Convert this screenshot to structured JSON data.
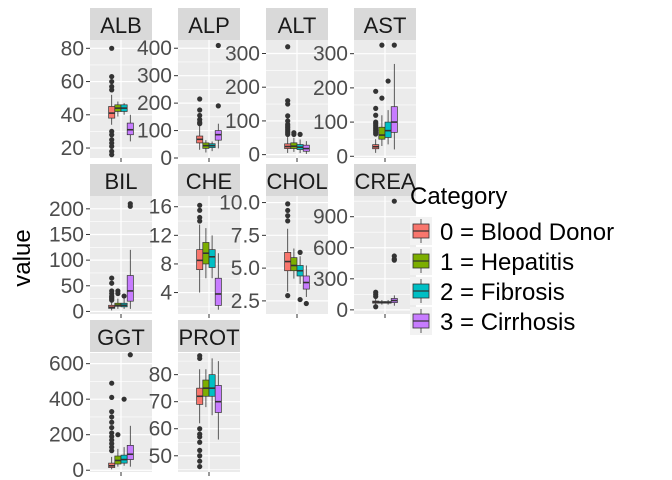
{
  "y_axis_title": "value",
  "legend": {
    "title": "Category",
    "entries": [
      {
        "label": "0 = Blood Donor",
        "color": "#F8766D"
      },
      {
        "label": "1 = Hepatitis",
        "color": "#7CAE00"
      },
      {
        "label": "2 = Fibrosis",
        "color": "#00BFC4"
      },
      {
        "label": "3 = Cirrhosis",
        "color": "#C77CFF"
      }
    ]
  },
  "chart_data": {
    "type": "boxplot",
    "facet_layout": "wrap",
    "scales": "free_y",
    "legend_position": "right",
    "grid": true,
    "groups": [
      "0 = Blood Donor",
      "1 = Hepatitis",
      "2 = Fibrosis",
      "3 = Cirrhosis"
    ],
    "panels": [
      {
        "strip": "ALB",
        "ylim": [
          14,
          85
        ],
        "yticks": [
          20,
          40,
          60,
          80
        ],
        "boxes": [
          {
            "group": "0 = Blood Donor",
            "lower": 34,
            "q1": 38,
            "median": 41,
            "q3": 45,
            "upper": 52,
            "outliers": [
              80,
              63,
              60,
              57,
              55,
              30,
              28,
              25,
              23,
              21,
              18,
              16
            ]
          },
          {
            "group": "1 = Hepatitis",
            "lower": 39,
            "q1": 42,
            "median": 44,
            "q3": 46,
            "upper": 48,
            "outliers": []
          },
          {
            "group": "2 = Fibrosis",
            "lower": 40,
            "q1": 42,
            "median": 44,
            "q3": 46,
            "upper": 47,
            "outliers": []
          },
          {
            "group": "3 = Cirrhosis",
            "lower": 24,
            "q1": 28,
            "median": 31,
            "q3": 35,
            "upper": 40,
            "outliers": []
          }
        ]
      },
      {
        "strip": "ALP",
        "ylim": [
          0,
          430
        ],
        "yticks": [
          0,
          100,
          200,
          300,
          400
        ],
        "boxes": [
          {
            "group": "0 = Blood Donor",
            "lower": 30,
            "q1": 55,
            "median": 68,
            "q3": 80,
            "upper": 120,
            "outliers": [
              215,
              175,
              155,
              140,
              130,
              125
            ]
          },
          {
            "group": "1 = Hepatitis",
            "lower": 20,
            "q1": 35,
            "median": 45,
            "q3": 55,
            "upper": 65,
            "outliers": []
          },
          {
            "group": "2 = Fibrosis",
            "lower": 25,
            "q1": 38,
            "median": 45,
            "q3": 52,
            "upper": 60,
            "outliers": []
          },
          {
            "group": "3 = Cirrhosis",
            "lower": 35,
            "q1": 65,
            "median": 85,
            "q3": 100,
            "upper": 125,
            "outliers": [
              410,
              190
            ]
          }
        ]
      },
      {
        "strip": "ALT",
        "ylim": [
          -10,
          340
        ],
        "yticks": [
          0,
          100,
          200,
          300
        ],
        "boxes": [
          {
            "group": "0 = Blood Donor",
            "lower": 5,
            "q1": 18,
            "median": 24,
            "q3": 32,
            "upper": 52,
            "outliers": [
              320,
              160,
              150,
              115,
              100,
              90,
              85,
              80,
              75,
              70,
              65,
              60
            ]
          },
          {
            "group": "1 = Hepatitis",
            "lower": 8,
            "q1": 18,
            "median": 25,
            "q3": 35,
            "upper": 50,
            "outliers": [
              65,
              60
            ]
          },
          {
            "group": "2 = Fibrosis",
            "lower": 5,
            "q1": 15,
            "median": 22,
            "q3": 30,
            "upper": 45,
            "outliers": [
              60
            ]
          },
          {
            "group": "3 = Cirrhosis",
            "lower": 2,
            "q1": 10,
            "median": 18,
            "q3": 28,
            "upper": 40,
            "outliers": []
          }
        ]
      },
      {
        "strip": "AST",
        "ylim": [
          -5,
          340
        ],
        "yticks": [
          0,
          100,
          200,
          300
        ],
        "boxes": [
          {
            "group": "0 = Blood Donor",
            "lower": 10,
            "q1": 22,
            "median": 28,
            "q3": 34,
            "upper": 50,
            "outliers": [
              190,
              140,
              120,
              100,
              95,
              90,
              85,
              80,
              75,
              70,
              65
            ]
          },
          {
            "group": "1 = Hepatitis",
            "lower": 30,
            "q1": 50,
            "median": 62,
            "q3": 85,
            "upper": 120,
            "outliers": [
              325,
              170
            ]
          },
          {
            "group": "2 = Fibrosis",
            "lower": 35,
            "q1": 55,
            "median": 75,
            "q3": 100,
            "upper": 135,
            "outliers": [
              220
            ]
          },
          {
            "group": "3 = Cirrhosis",
            "lower": 20,
            "q1": 70,
            "median": 100,
            "q3": 145,
            "upper": 270,
            "outliers": [
              325
            ]
          }
        ]
      },
      {
        "strip": "BIL",
        "ylim": [
          -5,
          225
        ],
        "yticks": [
          0,
          50,
          100,
          150,
          200
        ],
        "boxes": [
          {
            "group": "0 = Blood Donor",
            "lower": 2,
            "q1": 6,
            "median": 8,
            "q3": 12,
            "upper": 20,
            "outliers": [
              65,
              55,
              40,
              35,
              30,
              28,
              25,
              22
            ]
          },
          {
            "group": "1 = Hepatitis",
            "lower": 5,
            "q1": 10,
            "median": 12,
            "q3": 16,
            "upper": 25,
            "outliers": [
              40,
              35
            ]
          },
          {
            "group": "2 = Fibrosis",
            "lower": 5,
            "q1": 9,
            "median": 12,
            "q3": 16,
            "upper": 25,
            "outliers": [
              30
            ]
          },
          {
            "group": "3 = Cirrhosis",
            "lower": 5,
            "q1": 20,
            "median": 40,
            "q3": 70,
            "upper": 120,
            "outliers": [
              210,
              205
            ]
          }
        ]
      },
      {
        "strip": "CHE",
        "ylim": [
          1,
          17.5
        ],
        "yticks": [
          4,
          8,
          12,
          16
        ],
        "boxes": [
          {
            "group": "0 = Blood Donor",
            "lower": 4,
            "q1": 7.2,
            "median": 8.5,
            "q3": 10,
            "upper": 13.5,
            "outliers": [
              16.2,
              15.5,
              14.5,
              14
            ]
          },
          {
            "group": "1 = Hepatitis",
            "lower": 6,
            "q1": 8,
            "median": 9.5,
            "q3": 11,
            "upper": 13,
            "outliers": []
          },
          {
            "group": "2 = Fibrosis",
            "lower": 6,
            "q1": 7.5,
            "median": 9,
            "q3": 10,
            "upper": 12,
            "outliers": []
          },
          {
            "group": "3 = Cirrhosis",
            "lower": 1.6,
            "q1": 2.2,
            "median": 3.8,
            "q3": 6,
            "upper": 9.5,
            "outliers": []
          }
        ]
      },
      {
        "strip": "CHOL",
        "ylim": [
          1.5,
          10.5
        ],
        "yticks": [
          2.5,
          5.0,
          7.5,
          10.0
        ],
        "ytick_labels": [
          "2.5",
          "5.0",
          "7.5",
          "10.0"
        ],
        "boxes": [
          {
            "group": "0 = Blood Donor",
            "lower": 3.2,
            "q1": 4.8,
            "median": 5.5,
            "q3": 6.2,
            "upper": 8,
            "outliers": [
              9.9,
              9.4,
              9.0,
              8.6,
              2.9
            ]
          },
          {
            "group": "1 = Hepatitis",
            "lower": 4.2,
            "q1": 4.8,
            "median": 5.2,
            "q3": 5.8,
            "upper": 6.5,
            "outliers": []
          },
          {
            "group": "2 = Fibrosis",
            "lower": 3.8,
            "q1": 4.4,
            "median": 4.8,
            "q3": 5.2,
            "upper": 5.9,
            "outliers": [
              6.2,
              2.6
            ]
          },
          {
            "group": "3 = Cirrhosis",
            "lower": 2.8,
            "q1": 3.4,
            "median": 3.9,
            "q3": 4.4,
            "upper": 5.2,
            "outliers": [
              2.3
            ]
          }
        ]
      },
      {
        "strip": "CREA",
        "ylim": [
          -40,
          1100
        ],
        "yticks": [
          0,
          300,
          600,
          900
        ],
        "boxes": [
          {
            "group": "0 = Blood Donor",
            "lower": 45,
            "q1": 65,
            "median": 75,
            "q3": 85,
            "upper": 105,
            "outliers": [
              170,
              150,
              130,
              30
            ]
          },
          {
            "group": "1 = Hepatitis",
            "lower": 50,
            "q1": 65,
            "median": 72,
            "q3": 80,
            "upper": 95,
            "outliers": []
          },
          {
            "group": "2 = Fibrosis",
            "lower": 50,
            "q1": 65,
            "median": 72,
            "q3": 80,
            "upper": 95,
            "outliers": []
          },
          {
            "group": "3 = Cirrhosis",
            "lower": 40,
            "q1": 70,
            "median": 90,
            "q3": 110,
            "upper": 140,
            "outliers": [
              1050,
              520,
              490,
              480
            ]
          }
        ]
      },
      {
        "strip": "GGT",
        "ylim": [
          -10,
          660
        ],
        "yticks": [
          0,
          200,
          400,
          600
        ],
        "boxes": [
          {
            "group": "0 = Blood Donor",
            "lower": 5,
            "q1": 15,
            "median": 25,
            "q3": 40,
            "upper": 75,
            "outliers": [
              490,
              410,
              330,
              300,
              270,
              240,
              210,
              190,
              170,
              150,
              130,
              110
            ]
          },
          {
            "group": "1 = Hepatitis",
            "lower": 20,
            "q1": 35,
            "median": 55,
            "q3": 80,
            "upper": 120,
            "outliers": [
              200
            ]
          },
          {
            "group": "2 = Fibrosis",
            "lower": 25,
            "q1": 40,
            "median": 60,
            "q3": 85,
            "upper": 130,
            "outliers": [
              400
            ]
          },
          {
            "group": "3 = Cirrhosis",
            "lower": 20,
            "q1": 60,
            "median": 90,
            "q3": 140,
            "upper": 250,
            "outliers": [
              650
            ]
          }
        ]
      },
      {
        "strip": "PROT",
        "ylim": [
          44,
          88
        ],
        "yticks": [
          50,
          60,
          70,
          80
        ],
        "boxes": [
          {
            "group": "0 = Blood Donor",
            "lower": 62,
            "q1": 69,
            "median": 72,
            "q3": 75,
            "upper": 82,
            "outliers": [
              87,
              86,
              60,
              58,
              57,
              55,
              52,
              50,
              48,
              46
            ]
          },
          {
            "group": "1 = Hepatitis",
            "lower": 68,
            "q1": 72,
            "median": 75,
            "q3": 78,
            "upper": 82,
            "outliers": []
          },
          {
            "group": "2 = Fibrosis",
            "lower": 65,
            "q1": 72,
            "median": 75,
            "q3": 80,
            "upper": 86,
            "outliers": []
          },
          {
            "group": "3 = Cirrhosis",
            "lower": 56,
            "q1": 66,
            "median": 70,
            "q3": 76,
            "upper": 85,
            "outliers": []
          }
        ]
      }
    ]
  }
}
